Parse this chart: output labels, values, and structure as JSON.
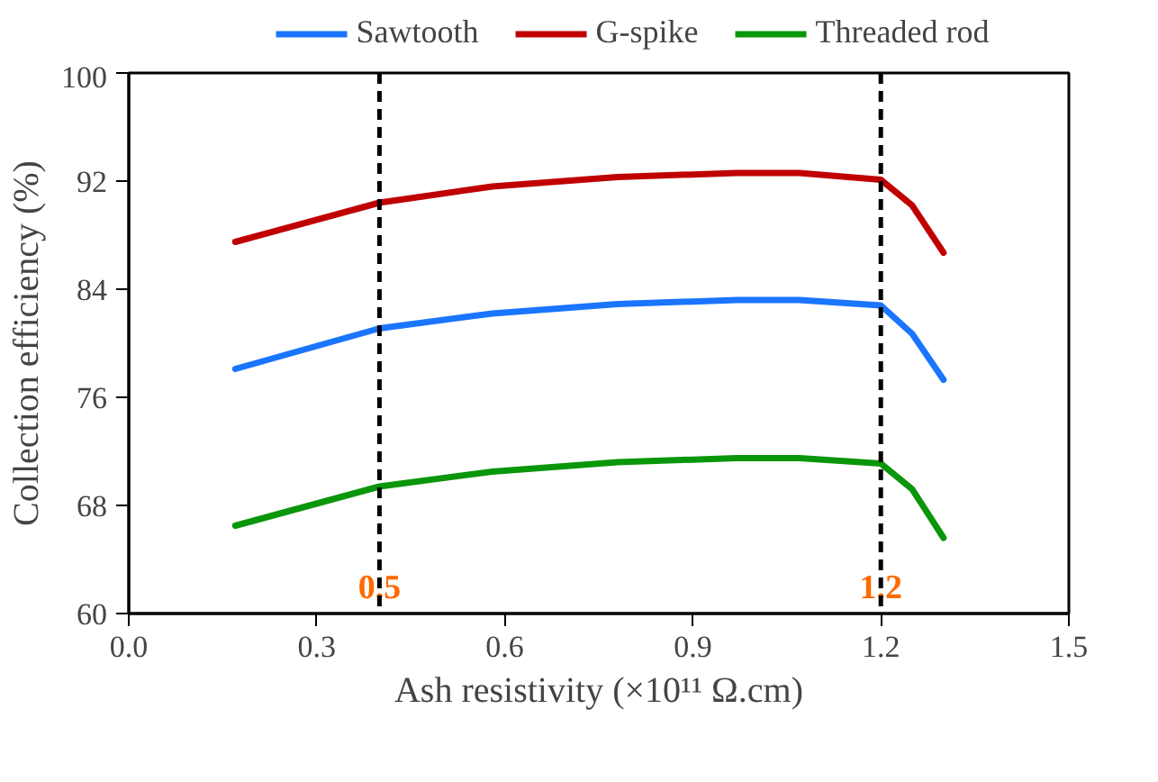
{
  "chart_data": {
    "type": "line",
    "xlabel": "Ash resistivity (×10¹¹ Ω.cm)",
    "ylabel": "Collection efficiency (%)",
    "x": [
      0.17,
      0.4,
      0.58,
      0.78,
      0.97,
      1.07,
      1.2,
      1.25,
      1.3
    ],
    "series": [
      {
        "name": "Sawtooth",
        "color": "#1a75ff",
        "values": [
          78.1,
          81.1,
          82.2,
          82.9,
          83.2,
          83.2,
          82.8,
          80.7,
          77.3
        ]
      },
      {
        "name": "G-spike",
        "color": "#c00000",
        "values": [
          87.5,
          90.4,
          91.6,
          92.3,
          92.6,
          92.6,
          92.1,
          90.2,
          86.7
        ]
      },
      {
        "name": "Threaded rod",
        "color": "#0a960a",
        "values": [
          66.5,
          69.4,
          70.5,
          71.2,
          71.5,
          71.5,
          71.1,
          69.2,
          65.6
        ]
      }
    ],
    "xlim": [
      0.0,
      1.5
    ],
    "xticks": [
      {
        "value": 0,
        "label": "0.0"
      },
      0.3,
      0.6,
      0.9,
      1.2,
      1.5
    ],
    "ylim": [
      60,
      100
    ],
    "yticks": [
      60,
      68,
      76,
      84,
      92,
      100
    ],
    "ref_lines": [
      {
        "axis": "x",
        "value": 0.4,
        "color": "#000000",
        "line_style": "dashed"
      },
      {
        "axis": "x",
        "value": 1.2,
        "color": "#000000",
        "line_style": "dashed"
      }
    ],
    "annotations": [
      {
        "text": "0.5",
        "x": 0.4,
        "y": 62
      },
      {
        "text": "1.2",
        "x": 1.2,
        "y": 62
      }
    ],
    "grid": false,
    "legend": "top",
    "marker": "none",
    "line_style": "solid"
  }
}
